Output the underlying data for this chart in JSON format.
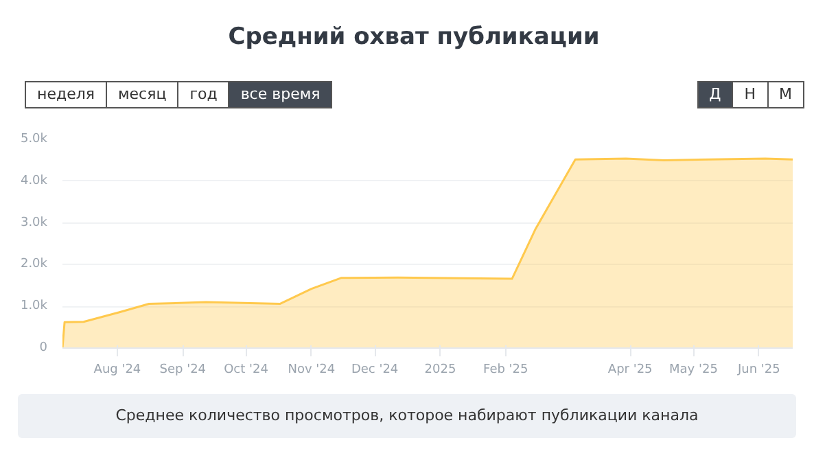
{
  "chart_data": {
    "type": "area",
    "title": "Средний охват публикации",
    "annotations": [
      "неделя",
      "месяц",
      "год",
      "все время",
      "Д",
      "Н",
      "М",
      "Среднее количество просмотров, которое набирают публикации канала"
    ],
    "x": [
      "2024-07-06",
      "2024-07-07",
      "2024-07-16",
      "2024-08-02",
      "2024-08-16",
      "2024-09-12",
      "2024-10-17",
      "2024-11-01",
      "2024-11-15",
      "2024-12-12",
      "2025-02-04",
      "2025-02-15",
      "2025-03-06",
      "2025-03-30",
      "2025-04-17",
      "2025-06-04",
      "2025-06-17"
    ],
    "series": [
      {
        "color": "#ffc94d",
        "values": [
          0,
          620,
          630,
          860,
          1060,
          1100,
          1060,
          1420,
          1680,
          1690,
          1660,
          2840,
          4520,
          4540,
          4500,
          4540,
          4520
        ]
      }
    ],
    "xlim": [
      "2024-07-06",
      "2025-06-17"
    ],
    "xticks": [
      {
        "value": "2024-08-01",
        "label": "Aug '24"
      },
      {
        "value": "2024-09-01",
        "label": "Sep '24"
      },
      {
        "value": "2024-10-01",
        "label": "Oct '24"
      },
      {
        "value": "2024-11-01",
        "label": "Nov '24"
      },
      {
        "value": "2024-12-01",
        "label": "Dec '24"
      },
      {
        "value": "2025-01-01",
        "label": "2025"
      },
      {
        "value": "2025-02-01",
        "label": "Feb '25"
      },
      {
        "value": "2025-04-01",
        "label": "Apr '25"
      },
      {
        "value": "2025-05-01",
        "label": "May '25"
      },
      {
        "value": "2025-06-01",
        "label": "Jun '25"
      }
    ],
    "ylim": [
      0,
      5000
    ],
    "yticks": [
      0,
      {
        "value": 1000,
        "label": "1.0k"
      },
      {
        "value": 2000,
        "label": "2.0k"
      },
      {
        "value": 3000,
        "label": "3.0k"
      },
      {
        "value": 4000,
        "label": "4.0k"
      },
      {
        "value": 5000,
        "label": "5.0k"
      }
    ],
    "grid": "y"
  }
}
